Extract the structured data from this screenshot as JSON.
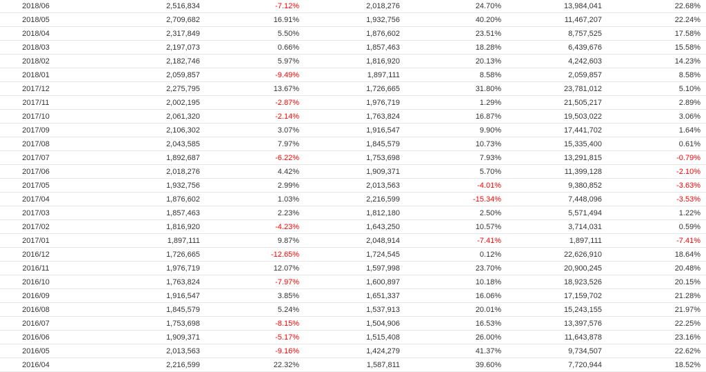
{
  "colors": {
    "text": "#333333",
    "negative": "#ff0000",
    "row_border": "#e8e8e8"
  },
  "rows": [
    [
      "2018/06",
      "2,516,834",
      "-7.12%",
      "2,018,276",
      "24.70%",
      "13,984,041",
      "22.68%"
    ],
    [
      "2018/05",
      "2,709,682",
      "16.91%",
      "1,932,756",
      "40.20%",
      "11,467,207",
      "22.24%"
    ],
    [
      "2018/04",
      "2,317,849",
      "5.50%",
      "1,876,602",
      "23.51%",
      "8,757,525",
      "17.58%"
    ],
    [
      "2018/03",
      "2,197,073",
      "0.66%",
      "1,857,463",
      "18.28%",
      "6,439,676",
      "15.58%"
    ],
    [
      "2018/02",
      "2,182,746",
      "5.97%",
      "1,816,920",
      "20.13%",
      "4,242,603",
      "14.23%"
    ],
    [
      "2018/01",
      "2,059,857",
      "-9.49%",
      "1,897,111",
      "8.58%",
      "2,059,857",
      "8.58%"
    ],
    [
      "2017/12",
      "2,275,795",
      "13.67%",
      "1,726,665",
      "31.80%",
      "23,781,012",
      "5.10%"
    ],
    [
      "2017/11",
      "2,002,195",
      "-2.87%",
      "1,976,719",
      "1.29%",
      "21,505,217",
      "2.89%"
    ],
    [
      "2017/10",
      "2,061,320",
      "-2.14%",
      "1,763,824",
      "16.87%",
      "19,503,022",
      "3.06%"
    ],
    [
      "2017/09",
      "2,106,302",
      "3.07%",
      "1,916,547",
      "9.90%",
      "17,441,702",
      "1.64%"
    ],
    [
      "2017/08",
      "2,043,585",
      "7.97%",
      "1,845,579",
      "10.73%",
      "15,335,400",
      "0.61%"
    ],
    [
      "2017/07",
      "1,892,687",
      "-6.22%",
      "1,753,698",
      "7.93%",
      "13,291,815",
      "-0.79%"
    ],
    [
      "2017/06",
      "2,018,276",
      "4.42%",
      "1,909,371",
      "5.70%",
      "11,399,128",
      "-2.10%"
    ],
    [
      "2017/05",
      "1,932,756",
      "2.99%",
      "2,013,563",
      "-4.01%",
      "9,380,852",
      "-3.63%"
    ],
    [
      "2017/04",
      "1,876,602",
      "1.03%",
      "2,216,599",
      "-15.34%",
      "7,448,096",
      "-3.53%"
    ],
    [
      "2017/03",
      "1,857,463",
      "2.23%",
      "1,812,180",
      "2.50%",
      "5,571,494",
      "1.22%"
    ],
    [
      "2017/02",
      "1,816,920",
      "-4.23%",
      "1,643,250",
      "10.57%",
      "3,714,031",
      "0.59%"
    ],
    [
      "2017/01",
      "1,897,111",
      "9.87%",
      "2,048,914",
      "-7.41%",
      "1,897,111",
      "-7.41%"
    ],
    [
      "2016/12",
      "1,726,665",
      "-12.65%",
      "1,724,545",
      "0.12%",
      "22,626,910",
      "18.64%"
    ],
    [
      "2016/11",
      "1,976,719",
      "12.07%",
      "1,597,998",
      "23.70%",
      "20,900,245",
      "20.48%"
    ],
    [
      "2016/10",
      "1,763,824",
      "-7.97%",
      "1,600,897",
      "10.18%",
      "18,923,526",
      "20.15%"
    ],
    [
      "2016/09",
      "1,916,547",
      "3.85%",
      "1,651,337",
      "16.06%",
      "17,159,702",
      "21.28%"
    ],
    [
      "2016/08",
      "1,845,579",
      "5.24%",
      "1,537,913",
      "20.01%",
      "15,243,155",
      "21.97%"
    ],
    [
      "2016/07",
      "1,753,698",
      "-8.15%",
      "1,504,906",
      "16.53%",
      "13,397,576",
      "22.25%"
    ],
    [
      "2016/06",
      "1,909,371",
      "-5.17%",
      "1,515,408",
      "26.00%",
      "11,643,878",
      "23.16%"
    ],
    [
      "2016/05",
      "2,013,563",
      "-9.16%",
      "1,424,279",
      "41.37%",
      "9,734,507",
      "22.62%"
    ],
    [
      "2016/04",
      "2,216,599",
      "22.32%",
      "1,587,811",
      "39.60%",
      "7,720,944",
      "18.52%"
    ]
  ]
}
